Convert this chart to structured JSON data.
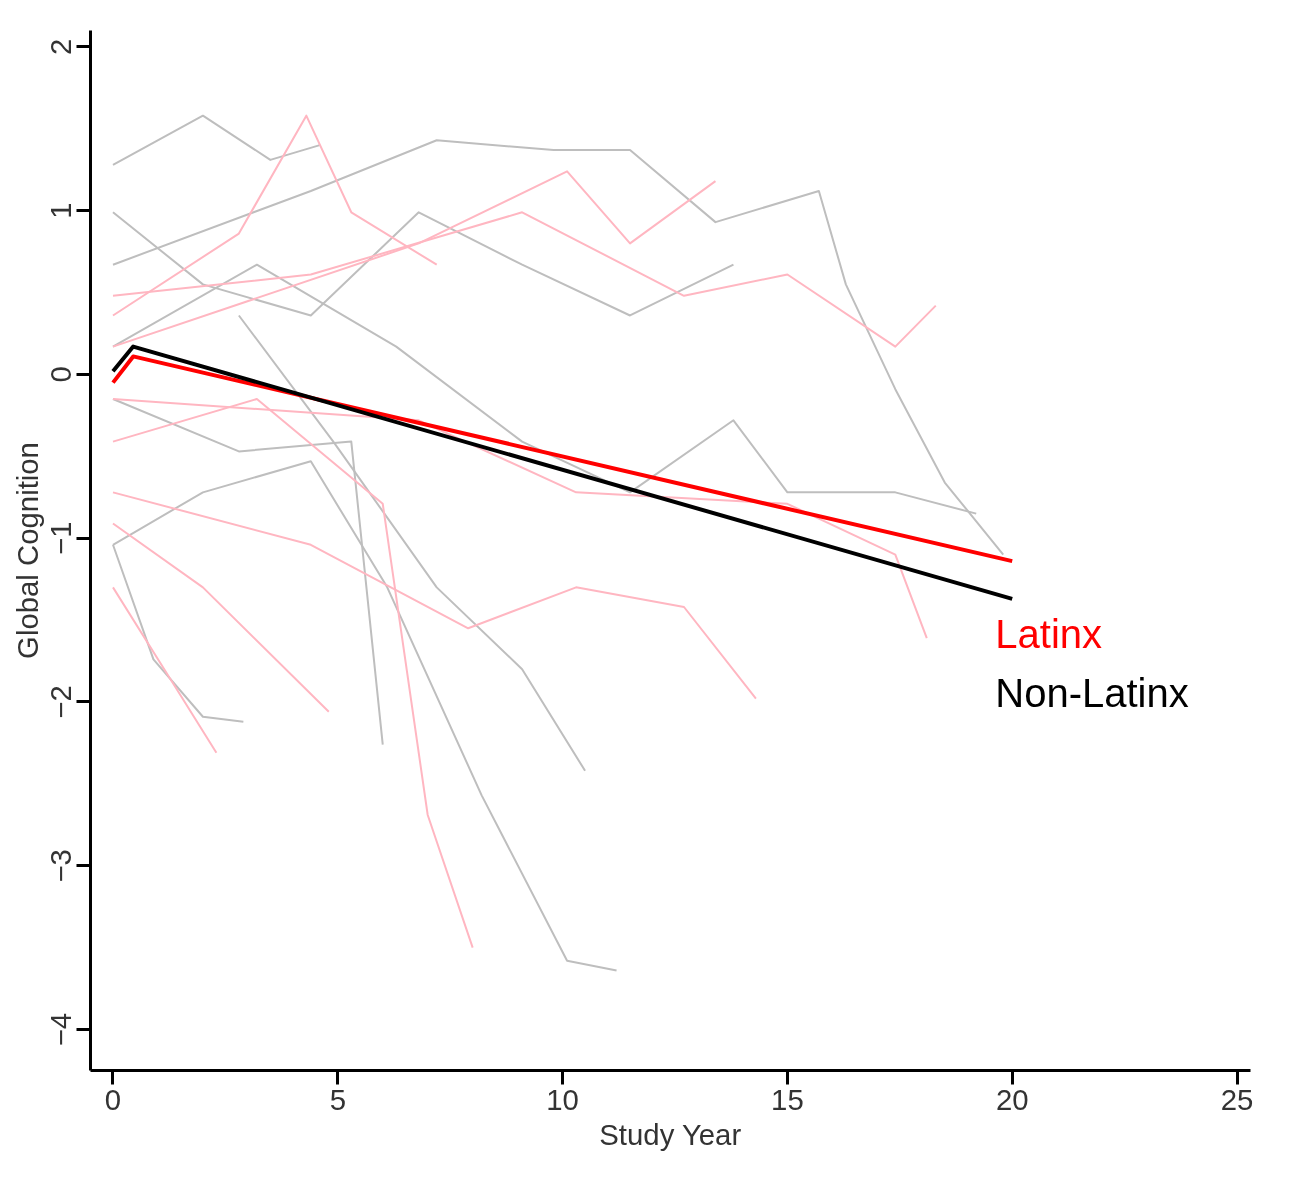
{
  "chart_data": {
    "type": "line",
    "xlabel": "Study Year",
    "ylabel": "Global Cognition",
    "xlim": [
      -0.5,
      25.3
    ],
    "ylim": [
      -4.25,
      2.1
    ],
    "xticks": [
      0,
      5,
      10,
      15,
      20,
      25
    ],
    "yticks": [
      -4,
      -3,
      -2,
      -1,
      0,
      1,
      2
    ],
    "grid": false,
    "legend": "right",
    "marker": "none",
    "line_style": "solid",
    "series": [
      {
        "color": "#bebebe",
        "x": [
          0,
          2,
          3.5,
          4.6
        ],
        "values": [
          1.28,
          1.58,
          1.31,
          1.4
        ]
      },
      {
        "color": "#bebebe",
        "x": [
          0,
          2,
          4.4,
          6.1,
          8.2,
          10.1,
          11.2
        ],
        "values": [
          -1.04,
          -0.72,
          -0.53,
          -1.3,
          -2.57,
          -3.58,
          -3.64
        ]
      },
      {
        "color": "#bebebe",
        "x": [
          0,
          0.9,
          2,
          2.9
        ],
        "values": [
          -1.04,
          -1.74,
          -2.09,
          -2.12
        ]
      },
      {
        "color": "#bebebe",
        "x": [
          2.8,
          4.9,
          7.2,
          9.1,
          10.5
        ],
        "values": [
          0.36,
          -0.41,
          -1.3,
          -1.8,
          -2.42
        ]
      },
      {
        "color": "#bebebe",
        "x": [
          0,
          4.4,
          7.2,
          9.8,
          11.5,
          13.4,
          15.7,
          16.3,
          17.4,
          18.5,
          19.8
        ],
        "values": [
          0.67,
          1.12,
          1.43,
          1.37,
          1.37,
          0.93,
          1.12,
          0.55,
          -0.09,
          -0.66,
          -1.1
        ]
      },
      {
        "color": "#bebebe",
        "x": [
          0,
          2.8,
          5.3,
          6
        ],
        "values": [
          -0.15,
          -0.47,
          -0.41,
          -2.26
        ]
      },
      {
        "color": "#bebebe",
        "x": [
          0,
          3.2,
          6.3,
          9.1,
          11.5,
          13.8,
          15,
          17.4,
          19.2
        ],
        "values": [
          0.17,
          0.67,
          0.17,
          -0.41,
          -0.72,
          -0.28,
          -0.72,
          -0.72,
          -0.85
        ]
      },
      {
        "color": "#bebebe",
        "x": [
          0,
          2,
          4.4,
          6.8,
          9.1,
          11.5,
          13.8
        ],
        "values": [
          0.99,
          0.55,
          0.36,
          0.99,
          0.67,
          0.36,
          0.67
        ]
      },
      {
        "color": "#ffb6c1",
        "x": [
          0,
          3.2,
          6,
          7,
          8
        ],
        "values": [
          -0.41,
          -0.15,
          -0.79,
          -2.69,
          -3.5
        ]
      },
      {
        "color": "#ffb6c1",
        "x": [
          0,
          2.8,
          4.3,
          5.3,
          7.2
        ],
        "values": [
          0.36,
          0.86,
          1.58,
          0.99,
          0.67
        ]
      },
      {
        "color": "#ffb6c1",
        "x": [
          0,
          1.3,
          2.3
        ],
        "values": [
          -1.3,
          -1.87,
          -2.31
        ]
      },
      {
        "color": "#ffb6c1",
        "x": [
          0,
          4.4,
          9.1,
          12.7,
          15,
          17.4,
          18.3
        ],
        "values": [
          0.48,
          0.61,
          0.99,
          0.48,
          0.61,
          0.17,
          0.42
        ]
      },
      {
        "color": "#ffb6c1",
        "x": [
          0,
          4.4,
          7.9,
          10.3,
          12.7,
          14.3
        ],
        "values": [
          -0.72,
          -1.04,
          -1.55,
          -1.3,
          -1.42,
          -1.98
        ]
      },
      {
        "color": "#ffb6c1",
        "x": [
          0,
          6.8,
          10.3,
          15,
          17.4,
          18.1
        ],
        "values": [
          -0.15,
          -0.28,
          -0.72,
          -0.79,
          -1.1,
          -1.61
        ]
      },
      {
        "color": "#ffb6c1",
        "x": [
          0,
          2,
          4.8
        ],
        "values": [
          -0.91,
          -1.3,
          -2.06
        ]
      },
      {
        "color": "#ffb6c1",
        "x": [
          0,
          6.8,
          10.1,
          11.5,
          13.4
        ],
        "values": [
          0.17,
          0.8,
          1.24,
          0.8,
          1.18
        ]
      },
      {
        "name": "Latinx",
        "color": "#ff0000",
        "x": [
          0,
          0.45,
          20
        ],
        "values": [
          -0.05,
          0.11,
          -1.14
        ]
      },
      {
        "name": "Non-Latinx",
        "color": "#000000",
        "x": [
          0,
          0.45,
          20
        ],
        "values": [
          0.02,
          0.17,
          -1.37
        ]
      }
    ]
  }
}
